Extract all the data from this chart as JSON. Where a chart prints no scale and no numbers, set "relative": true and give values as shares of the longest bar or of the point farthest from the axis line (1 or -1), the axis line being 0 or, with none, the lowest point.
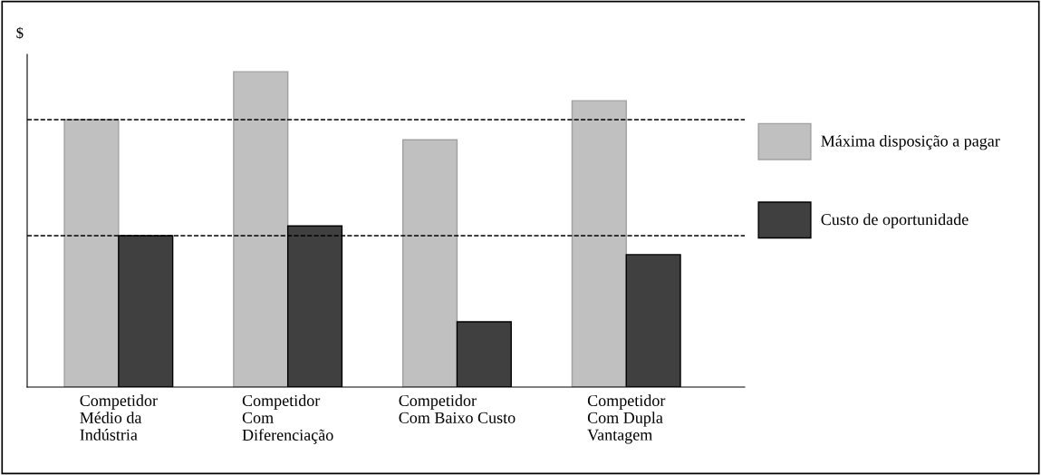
{
  "chart_data": {
    "type": "bar",
    "relative": true,
    "ylabel": "$",
    "categories": [
      "Competidor\nMédio da\nIndústria",
      "Competidor\nCom\nDiferenciação",
      "Competidor\nCom Baixo Custo",
      "Competidor\nCom Dupla\nVantagem"
    ],
    "series": [
      {
        "name": "Máxima disposição a pagar",
        "color": "#c0c0c0",
        "values": [
          0.848,
          1.0,
          0.784,
          0.908
        ]
      },
      {
        "name": "Custo de oportunidade",
        "color": "#404040",
        "values": [
          0.48,
          0.511,
          0.207,
          0.42
        ]
      }
    ],
    "ref_lines": [
      {
        "axis": "y",
        "value": 0.848,
        "line_style": "dashed",
        "color": "#000000"
      },
      {
        "axis": "y",
        "value": 0.48,
        "line_style": "dashed",
        "color": "#000000"
      }
    ],
    "legend": "right",
    "grid": false
  }
}
